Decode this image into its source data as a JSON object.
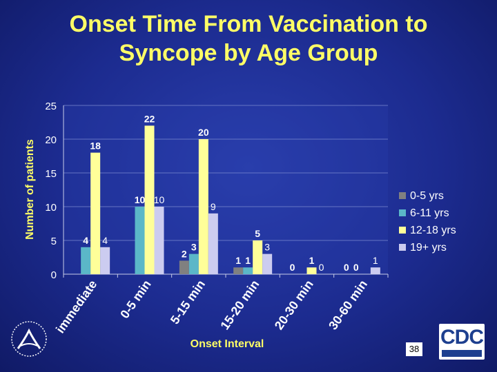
{
  "slide": {
    "title_line1": "Onset Time From Vaccination to",
    "title_line2": "Syncope by Age Group",
    "page_number": "38",
    "logo_text": "CDC"
  },
  "colors": {
    "title": "#ffff66",
    "axis_label": "#ffff66",
    "text": "#ffffff",
    "series": [
      "#808080",
      "#5bb7c8",
      "#ffff99",
      "#ccccf0"
    ]
  },
  "chart_data": {
    "type": "bar",
    "title": "",
    "xlabel": "Onset Interval",
    "ylabel": "Number of patients",
    "ylim": [
      0,
      25
    ],
    "yticks": [
      0,
      5,
      10,
      15,
      20,
      25
    ],
    "grid": true,
    "legend_position": "right",
    "categories": [
      "immediate",
      "0-5 min",
      "5-15 min",
      "15-20 min",
      "20-30 min",
      "30-60 min"
    ],
    "series": [
      {
        "name": "0-5 yrs",
        "values": [
          0,
          0,
          2,
          1,
          0,
          0
        ],
        "labels": [
          "",
          "",
          "2",
          "1",
          "0",
          "0"
        ]
      },
      {
        "name": "6-11 yrs",
        "values": [
          4,
          10,
          3,
          1,
          0,
          0
        ],
        "labels": [
          "4",
          "10",
          "3",
          "1",
          "",
          "0"
        ]
      },
      {
        "name": "12-18 yrs",
        "values": [
          18,
          22,
          20,
          5,
          1,
          0
        ],
        "labels": [
          "18",
          "22",
          "20",
          "5",
          "1",
          ""
        ]
      },
      {
        "name": "19+ yrs",
        "values": [
          4,
          10,
          9,
          3,
          0,
          1
        ],
        "labels": [
          "4",
          "10",
          "9",
          "3",
          "0",
          "1"
        ]
      }
    ]
  }
}
